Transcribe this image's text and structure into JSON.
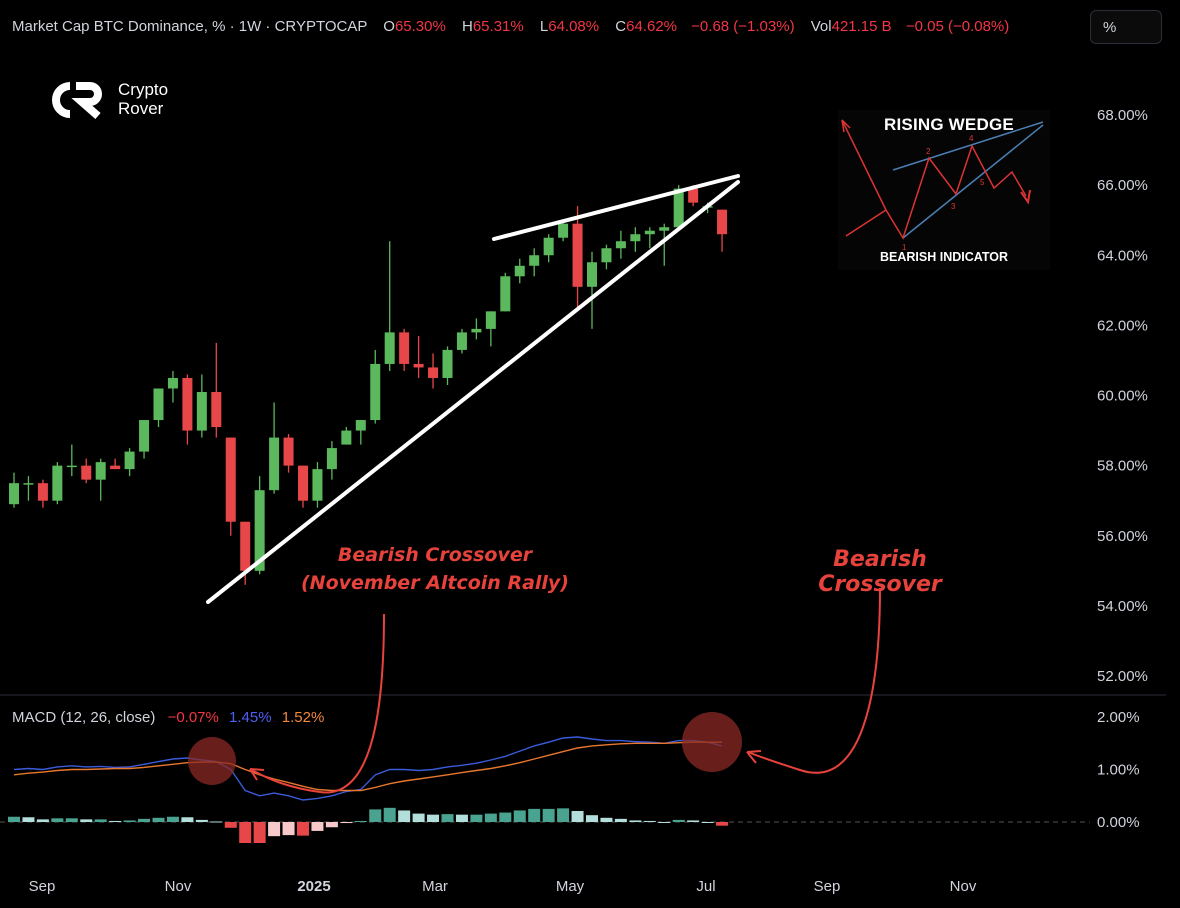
{
  "header": {
    "symbol": "Market Cap BTC Dominance, % · 1W · CRYPTOCAP",
    "o_label": "O",
    "o_value": "65.30%",
    "h_label": "H",
    "h_value": "65.31%",
    "l_label": "L",
    "l_value": "64.08%",
    "c_label": "C",
    "c_value": "64.62%",
    "change": "−0.68 (−1.03%)",
    "vol_label": "Vol",
    "vol_value": "421.15 B",
    "vol_change": "−0.05 (−0.08%)"
  },
  "toolbar": {
    "percent_button": "%"
  },
  "brand": {
    "line1": "Crypto",
    "line2": "Rover"
  },
  "macd_header": {
    "label": "MACD (12, 26, close)",
    "hist": "−0.07%",
    "macd": "1.45%",
    "signal": "1.52%"
  },
  "inset": {
    "title": "RISING WEDGE",
    "subtitle": "BEARISH INDICATOR",
    "points": [
      "1",
      "2",
      "3",
      "4",
      "5"
    ]
  },
  "annotations": {
    "left_line1": "Bearish Crossover",
    "left_line2": "(November Altcoin Rally)",
    "right": "Bearish Crossover"
  },
  "colors": {
    "up": "#5cb85c",
    "down": "#e8474a",
    "macd_line": "#3b5bdb",
    "signal_line": "#e8772e",
    "hist_pos": "#4aa391",
    "hist_neg": "#e8474a",
    "annotation": "#e8423c"
  },
  "chart_data": [
    {
      "type": "candlestick",
      "title": "Market Cap BTC Dominance, % · 1W · CRYPTOCAP",
      "ylabel": "%",
      "ylim": [
        51.5,
        68.8
      ],
      "y_ticks": [
        "68.00%",
        "66.00%",
        "64.00%",
        "62.00%",
        "60.00%",
        "58.00%",
        "56.00%",
        "54.00%",
        "52.00%"
      ],
      "x_ticks": [
        "Sep",
        "Nov",
        "2025",
        "Mar",
        "May",
        "Jul",
        "Sep",
        "Nov"
      ],
      "candles": [
        {
          "o": 56.9,
          "h": 57.8,
          "l": 56.8,
          "c": 57.5
        },
        {
          "o": 57.5,
          "h": 57.7,
          "l": 57.0,
          "c": 57.5
        },
        {
          "o": 57.5,
          "h": 57.6,
          "l": 56.8,
          "c": 57.0
        },
        {
          "o": 57.0,
          "h": 58.1,
          "l": 56.9,
          "c": 58.0
        },
        {
          "o": 58.0,
          "h": 58.6,
          "l": 57.7,
          "c": 58.0
        },
        {
          "o": 58.0,
          "h": 58.2,
          "l": 57.5,
          "c": 57.6
        },
        {
          "o": 57.6,
          "h": 58.2,
          "l": 57.0,
          "c": 58.1
        },
        {
          "o": 58.0,
          "h": 58.2,
          "l": 57.9,
          "c": 57.9
        },
        {
          "o": 57.9,
          "h": 58.5,
          "l": 57.7,
          "c": 58.4
        },
        {
          "o": 58.4,
          "h": 59.2,
          "l": 58.2,
          "c": 59.3
        },
        {
          "o": 59.3,
          "h": 60.2,
          "l": 59.1,
          "c": 60.2
        },
        {
          "o": 60.2,
          "h": 60.7,
          "l": 59.8,
          "c": 60.5
        },
        {
          "o": 60.5,
          "h": 60.6,
          "l": 58.6,
          "c": 59.0
        },
        {
          "o": 59.0,
          "h": 60.6,
          "l": 58.8,
          "c": 60.1
        },
        {
          "o": 60.1,
          "h": 61.5,
          "l": 58.8,
          "c": 59.1
        },
        {
          "o": 58.8,
          "h": 58.8,
          "l": 56.0,
          "c": 56.4
        },
        {
          "o": 56.4,
          "h": 56.4,
          "l": 54.6,
          "c": 55.0
        },
        {
          "o": 55.0,
          "h": 57.7,
          "l": 54.9,
          "c": 57.3
        },
        {
          "o": 57.3,
          "h": 59.8,
          "l": 57.2,
          "c": 58.8
        },
        {
          "o": 58.8,
          "h": 58.9,
          "l": 57.8,
          "c": 58.0
        },
        {
          "o": 58.0,
          "h": 58.0,
          "l": 56.8,
          "c": 57.0
        },
        {
          "o": 57.0,
          "h": 58.1,
          "l": 56.8,
          "c": 57.9
        },
        {
          "o": 57.9,
          "h": 58.7,
          "l": 57.6,
          "c": 58.5
        },
        {
          "o": 58.6,
          "h": 59.1,
          "l": 58.6,
          "c": 59.0
        },
        {
          "o": 59.0,
          "h": 59.3,
          "l": 58.6,
          "c": 59.3
        },
        {
          "o": 59.3,
          "h": 61.3,
          "l": 59.2,
          "c": 60.9
        },
        {
          "o": 60.9,
          "h": 64.4,
          "l": 60.7,
          "c": 61.8
        },
        {
          "o": 61.8,
          "h": 61.9,
          "l": 60.7,
          "c": 60.9
        },
        {
          "o": 60.9,
          "h": 61.7,
          "l": 60.5,
          "c": 60.8
        },
        {
          "o": 60.8,
          "h": 61.2,
          "l": 60.2,
          "c": 60.5
        },
        {
          "o": 60.5,
          "h": 61.4,
          "l": 60.3,
          "c": 61.3
        },
        {
          "o": 61.3,
          "h": 61.9,
          "l": 61.2,
          "c": 61.8
        },
        {
          "o": 61.8,
          "h": 62.2,
          "l": 61.6,
          "c": 61.9
        },
        {
          "o": 61.9,
          "h": 62.4,
          "l": 61.4,
          "c": 62.4
        },
        {
          "o": 62.4,
          "h": 63.5,
          "l": 62.4,
          "c": 63.4
        },
        {
          "o": 63.4,
          "h": 63.9,
          "l": 63.2,
          "c": 63.7
        },
        {
          "o": 63.7,
          "h": 64.2,
          "l": 63.4,
          "c": 64.0
        },
        {
          "o": 64.0,
          "h": 64.6,
          "l": 63.8,
          "c": 64.5
        },
        {
          "o": 64.5,
          "h": 65.0,
          "l": 64.4,
          "c": 64.9
        },
        {
          "o": 64.9,
          "h": 65.4,
          "l": 62.5,
          "c": 63.1
        },
        {
          "o": 63.1,
          "h": 64.1,
          "l": 61.9,
          "c": 63.8
        },
        {
          "o": 63.8,
          "h": 64.3,
          "l": 63.6,
          "c": 64.2
        },
        {
          "o": 64.2,
          "h": 64.7,
          "l": 63.9,
          "c": 64.4
        },
        {
          "o": 64.4,
          "h": 64.8,
          "l": 64.1,
          "c": 64.6
        },
        {
          "o": 64.6,
          "h": 64.8,
          "l": 64.2,
          "c": 64.7
        },
        {
          "o": 64.7,
          "h": 64.9,
          "l": 63.7,
          "c": 64.8
        },
        {
          "o": 64.8,
          "h": 66.0,
          "l": 64.7,
          "c": 65.9
        },
        {
          "o": 65.9,
          "h": 66.0,
          "l": 65.4,
          "c": 65.5
        },
        {
          "o": 65.4,
          "h": 65.5,
          "l": 65.2,
          "c": 65.4
        },
        {
          "o": 65.3,
          "h": 65.3,
          "l": 64.1,
          "c": 64.6
        }
      ]
    },
    {
      "type": "line",
      "title": "MACD (12, 26, close)",
      "ylim": [
        -0.6,
        2.2
      ],
      "y_ticks": [
        "2.00%",
        "1.00%",
        "0.00%"
      ],
      "series": [
        {
          "values": [
            1.0,
            1.02,
            1.0,
            1.05,
            1.07,
            1.05,
            1.06,
            1.04,
            1.05,
            1.1,
            1.15,
            1.2,
            1.22,
            1.18,
            1.15,
            1.0,
            0.6,
            0.5,
            0.55,
            0.5,
            0.42,
            0.45,
            0.5,
            0.58,
            0.62,
            0.9,
            1.0,
            1.0,
            0.98,
            1.0,
            1.05,
            1.08,
            1.12,
            1.18,
            1.25,
            1.35,
            1.45,
            1.52,
            1.6,
            1.62,
            1.58,
            1.55,
            1.55,
            1.53,
            1.52,
            1.5,
            1.55,
            1.55,
            1.52,
            1.45
          ]
        },
        {
          "values": [
            0.9,
            0.93,
            0.95,
            0.98,
            1.0,
            1.0,
            1.01,
            1.02,
            1.02,
            1.04,
            1.07,
            1.1,
            1.13,
            1.14,
            1.14,
            1.11,
            1.0,
            0.9,
            0.82,
            0.75,
            0.68,
            0.62,
            0.6,
            0.6,
            0.6,
            0.66,
            0.73,
            0.78,
            0.82,
            0.86,
            0.9,
            0.94,
            0.98,
            1.02,
            1.07,
            1.13,
            1.2,
            1.27,
            1.34,
            1.41,
            1.45,
            1.47,
            1.49,
            1.5,
            1.5,
            1.5,
            1.51,
            1.52,
            1.52,
            1.52
          ]
        }
      ],
      "histogram": [
        0.1,
        0.09,
        0.05,
        0.07,
        0.07,
        0.05,
        0.05,
        0.02,
        0.03,
        0.06,
        0.08,
        0.1,
        0.09,
        0.04,
        0.01,
        -0.11,
        -0.4,
        -0.4,
        -0.27,
        -0.25,
        -0.26,
        -0.17,
        -0.1,
        -0.02,
        0.02,
        0.24,
        0.27,
        0.22,
        0.16,
        0.14,
        0.15,
        0.14,
        0.14,
        0.16,
        0.18,
        0.22,
        0.25,
        0.25,
        0.26,
        0.21,
        0.13,
        0.08,
        0.06,
        0.03,
        0.02,
        0.0,
        0.04,
        0.03,
        0.0,
        -0.07
      ]
    }
  ]
}
